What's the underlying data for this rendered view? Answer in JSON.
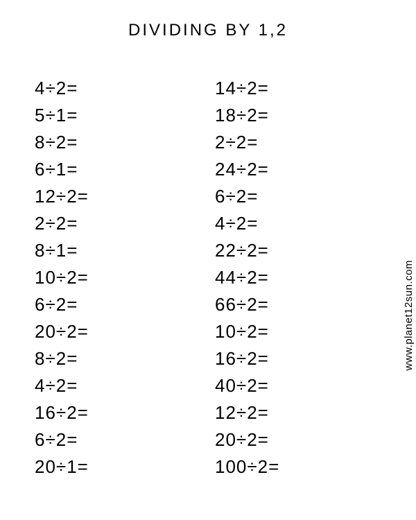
{
  "title": "DIVIDING BY 1,2",
  "watermark": "www.planet12sun.com",
  "styling": {
    "background_color": "#ffffff",
    "text_color": "#000000",
    "title_fontsize": 24,
    "title_letter_spacing": 3,
    "problem_fontsize": 26,
    "problem_line_height": 1.5,
    "watermark_fontsize": 15,
    "font_family": "Arial, Helvetica, sans-serif"
  },
  "division_symbol": "÷",
  "equals_symbol": "=",
  "columns": {
    "left": [
      {
        "dividend": 4,
        "divisor": 2
      },
      {
        "dividend": 5,
        "divisor": 1
      },
      {
        "dividend": 8,
        "divisor": 2
      },
      {
        "dividend": 6,
        "divisor": 1
      },
      {
        "dividend": 12,
        "divisor": 2
      },
      {
        "dividend": 2,
        "divisor": 2
      },
      {
        "dividend": 8,
        "divisor": 1
      },
      {
        "dividend": 10,
        "divisor": 2
      },
      {
        "dividend": 6,
        "divisor": 2
      },
      {
        "dividend": 20,
        "divisor": 2
      },
      {
        "dividend": 8,
        "divisor": 2
      },
      {
        "dividend": 4,
        "divisor": 2
      },
      {
        "dividend": 16,
        "divisor": 2
      },
      {
        "dividend": 6,
        "divisor": 2
      },
      {
        "dividend": 20,
        "divisor": 1
      }
    ],
    "right": [
      {
        "dividend": 14,
        "divisor": 2
      },
      {
        "dividend": 18,
        "divisor": 2
      },
      {
        "dividend": 2,
        "divisor": 2
      },
      {
        "dividend": 24,
        "divisor": 2
      },
      {
        "dividend": 6,
        "divisor": 2
      },
      {
        "dividend": 4,
        "divisor": 2
      },
      {
        "dividend": 22,
        "divisor": 2
      },
      {
        "dividend": 44,
        "divisor": 2
      },
      {
        "dividend": 66,
        "divisor": 2
      },
      {
        "dividend": 10,
        "divisor": 2
      },
      {
        "dividend": 16,
        "divisor": 2
      },
      {
        "dividend": 40,
        "divisor": 2
      },
      {
        "dividend": 12,
        "divisor": 2
      },
      {
        "dividend": 20,
        "divisor": 2
      },
      {
        "dividend": 100,
        "divisor": 2
      }
    ]
  }
}
